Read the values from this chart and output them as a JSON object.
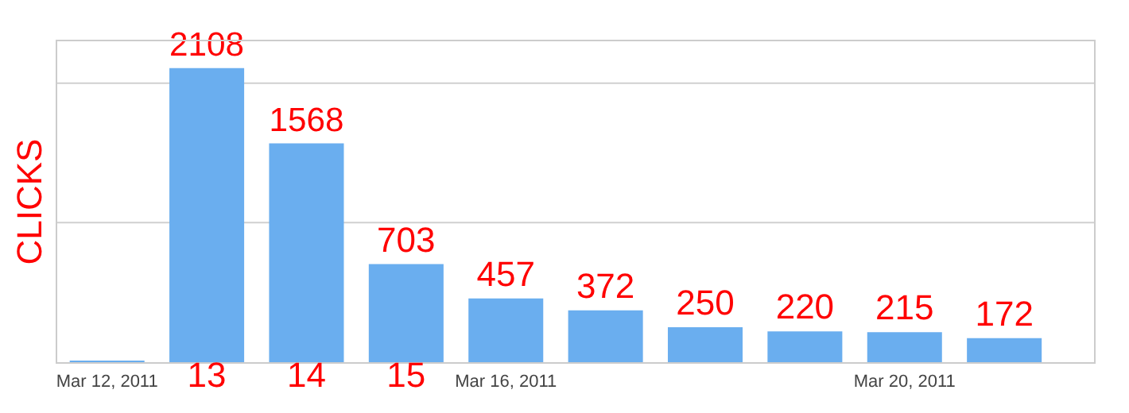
{
  "chart_data": {
    "type": "bar",
    "ylabel": "CLICKS",
    "categories": [
      "Mar 12, 2011",
      "13",
      "14",
      "15",
      "Mar 16, 2011",
      null,
      null,
      null,
      "Mar 20, 2011",
      null
    ],
    "values": [
      10,
      2108,
      1568,
      703,
      457,
      372,
      250,
      220,
      215,
      172
    ],
    "value_labels": [
      null,
      "2108",
      "1568",
      "703",
      "457",
      "372",
      "250",
      "220",
      "215",
      "172"
    ],
    "color": "#6aaeef",
    "ylim": [
      0,
      2300
    ],
    "ref_lines": [
      {
        "axis": "y",
        "value": 1000,
        "color": "#d0d0d0"
      },
      {
        "axis": "y",
        "value": 2000,
        "color": "#d0d0d0"
      }
    ],
    "legend": false
  }
}
